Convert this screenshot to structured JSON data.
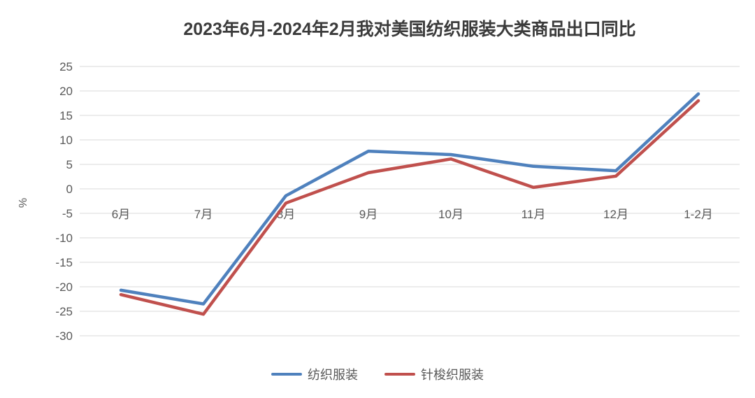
{
  "chart_data": {
    "type": "line",
    "title": "2023年6月-2024年2月我对美国纺织服装大类商品出口同比",
    "xlabel": "",
    "ylabel": "%",
    "categories": [
      "6月",
      "7月",
      "8月",
      "9月",
      "10月",
      "11月",
      "12月",
      "1-2月"
    ],
    "series": [
      {
        "name": "纺织服装",
        "color": "#4F81BD",
        "values": [
          -20.7,
          -23.5,
          -1.4,
          7.7,
          7.0,
          4.6,
          3.7,
          19.4
        ]
      },
      {
        "name": "针梭织服装",
        "color": "#C0504D",
        "values": [
          -21.6,
          -25.6,
          -2.9,
          3.3,
          6.1,
          0.3,
          2.6,
          18.0
        ]
      }
    ],
    "ylim": [
      -30,
      25
    ],
    "yticks": [
      25,
      20,
      15,
      10,
      5,
      0,
      -5,
      -10,
      -15,
      -20,
      -25,
      -30
    ],
    "grid": true,
    "legend_position": "bottom"
  },
  "colors": {
    "gridline": "#D9D9D9",
    "tick_text": "#595959",
    "title_text": "#3b3b3b"
  }
}
